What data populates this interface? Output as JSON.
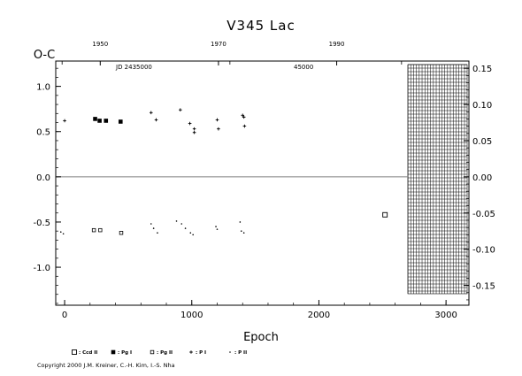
{
  "chart_data": {
    "type": "scatter",
    "title": "V345 Lac",
    "xlabel": "Epoch",
    "ylabel": "O-C",
    "xlim": [
      -70,
      3180
    ],
    "ylim": [
      -1.42,
      1.28
    ],
    "y2lim": [
      -0.1774,
      0.16
    ],
    "x_ticks": [
      "0",
      "1000",
      "2000",
      "3000"
    ],
    "y_ticks": [
      "1.0",
      "0.5",
      "0.0",
      "-0.5",
      "-1.0"
    ],
    "y2_ticks": [
      "0.15",
      "0.10",
      "0.05",
      "0.00",
      "-0.05",
      "-0.10",
      "-0.15"
    ],
    "top_year_ticks": [
      "1950",
      "1970",
      "1990"
    ],
    "jd_labels": [
      "JD 2435000",
      "45000"
    ],
    "zero_line": 0.0,
    "series": [
      {
        "name": "Ccd II",
        "marker": "open-square-large",
        "points": [
          [
            2520,
            -0.42
          ]
        ]
      },
      {
        "name": "Pg I",
        "marker": "filled-square",
        "points": [
          [
            240,
            0.64
          ],
          [
            275,
            0.62
          ],
          [
            325,
            0.62
          ],
          [
            440,
            0.61
          ]
        ]
      },
      {
        "name": "Pg II",
        "marker": "open-square-small",
        "points": [
          [
            230,
            -0.59
          ],
          [
            280,
            -0.59
          ],
          [
            445,
            -0.62
          ]
        ]
      },
      {
        "name": "P I",
        "marker": "plus",
        "points": [
          [
            0,
            0.62
          ],
          [
            680,
            0.71
          ],
          [
            720,
            0.63
          ],
          [
            910,
            0.74
          ],
          [
            985,
            0.59
          ],
          [
            1020,
            0.53
          ],
          [
            1020,
            0.49
          ],
          [
            1200,
            0.63
          ],
          [
            1210,
            0.53
          ],
          [
            1400,
            0.68
          ],
          [
            1410,
            0.66
          ],
          [
            1415,
            0.56
          ]
        ]
      },
      {
        "name": "P II",
        "marker": "dot",
        "points": [
          [
            -30,
            -0.61
          ],
          [
            -10,
            -0.63
          ],
          [
            680,
            -0.52
          ],
          [
            700,
            -0.57
          ],
          [
            730,
            -0.62
          ],
          [
            880,
            -0.49
          ],
          [
            920,
            -0.52
          ],
          [
            950,
            -0.57
          ],
          [
            990,
            -0.62
          ],
          [
            1010,
            -0.64
          ],
          [
            1190,
            -0.55
          ],
          [
            1200,
            -0.58
          ],
          [
            1380,
            -0.5
          ],
          [
            1390,
            -0.6
          ],
          [
            1410,
            -0.62
          ]
        ]
      }
    ],
    "grid_region": {
      "x_from": 2700,
      "x_to": 3180
    },
    "grid": false,
    "legend_placement": "bottom-left"
  },
  "copyright": "Copyright 2000 J.M. Kreiner, C.-H. Kim, I.-S. Nha",
  "colors": {
    "ink": "#000000",
    "background": "#ffffff",
    "zero_line": "#808080"
  }
}
